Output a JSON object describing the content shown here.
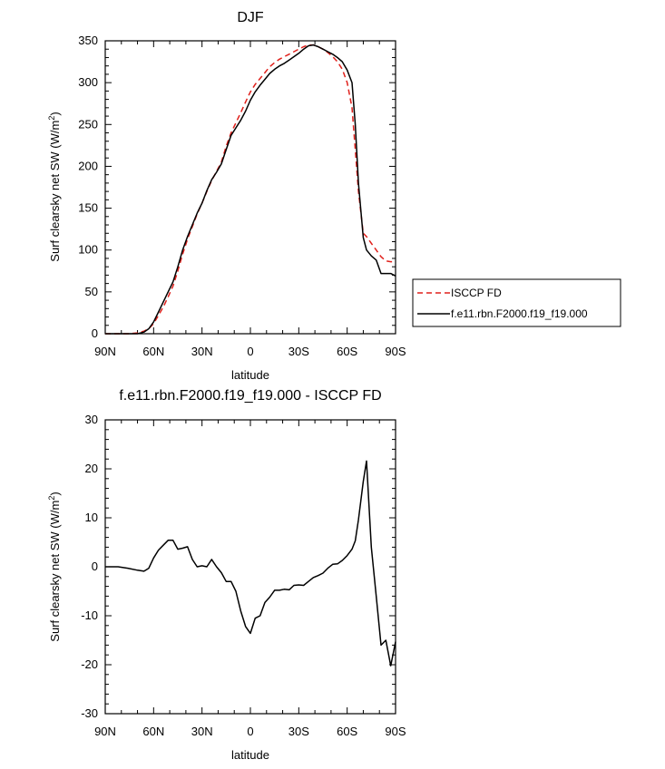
{
  "colors": {
    "background": "#ffffff",
    "isccp": "#e0201b",
    "model": "#000000"
  },
  "legend": {
    "items": [
      {
        "name": "ISCCP FD",
        "color": "#e0201b",
        "dash": "dashed"
      },
      {
        "name": "f.e11.rbn.F2000.f19_f19.000",
        "color": "#000000",
        "dash": "solid"
      }
    ]
  },
  "chart_data": [
    {
      "type": "line",
      "title": "DJF",
      "xlabel": "latitude",
      "ylabel_main": "Surf clearsky net SW (W/m",
      "ylabel_sup": "2",
      "ylabel_close": ")",
      "xlim": [
        -90,
        90
      ],
      "ylim": [
        0,
        350
      ],
      "xticks": [
        -90,
        -60,
        -30,
        0,
        30,
        60,
        90
      ],
      "xtick_labels": [
        "90N",
        "60N",
        "30N",
        "0",
        "30S",
        "60S",
        "90S"
      ],
      "yticks": [
        0,
        50,
        100,
        150,
        200,
        250,
        300,
        350
      ],
      "ytick_labels": [
        "0",
        "50",
        "100",
        "150",
        "200",
        "250",
        "300",
        "350"
      ],
      "series": [
        {
          "name": "ISCCP FD",
          "color": "#e0201b",
          "dash": "dashed",
          "x": [
            -90,
            -80,
            -75,
            -70,
            -66,
            -63,
            -60,
            -57,
            -54,
            -51,
            -48,
            -45,
            -42,
            -39,
            -36,
            -33,
            -30,
            -27,
            -24,
            -21,
            -18,
            -15,
            -12,
            -9,
            -6,
            -3,
            0,
            3,
            6,
            9,
            12,
            15,
            18,
            21,
            24,
            27,
            30,
            33,
            36,
            39,
            42,
            45,
            48,
            51,
            54,
            57,
            60,
            63,
            65,
            67,
            70,
            72,
            75,
            78,
            81,
            84,
            87,
            90
          ],
          "y": [
            0,
            0,
            0,
            1,
            3,
            6,
            12,
            22,
            32,
            44,
            57,
            75,
            95,
            113,
            128,
            143,
            156,
            170,
            183,
            194,
            205,
            224,
            240,
            252,
            264,
            277,
            289,
            298,
            305,
            312,
            319,
            324,
            328,
            331,
            334,
            337,
            340,
            343,
            345,
            345,
            343,
            340,
            336,
            331,
            325,
            316,
            300,
            270,
            220,
            170,
            120,
            116,
            108,
            100,
            92,
            87,
            86,
            86
          ]
        },
        {
          "name": "f.e11.rbn.F2000.f19_f19.000",
          "color": "#000000",
          "dash": "solid",
          "x": [
            -90,
            -80,
            -75,
            -70,
            -66,
            -63,
            -60,
            -57,
            -54,
            -51,
            -48,
            -45,
            -42,
            -39,
            -36,
            -33,
            -30,
            -27,
            -24,
            -21,
            -18,
            -15,
            -12,
            -9,
            -6,
            -3,
            0,
            3,
            6,
            9,
            12,
            15,
            18,
            21,
            24,
            27,
            30,
            33,
            36,
            39,
            42,
            45,
            48,
            51,
            54,
            57,
            60,
            63,
            65,
            67,
            70,
            72,
            75,
            78,
            81,
            84,
            87,
            90
          ],
          "y": [
            0,
            0,
            0,
            0,
            2,
            6,
            14,
            26,
            38,
            50,
            62,
            80,
            100,
            116,
            130,
            144,
            156,
            171,
            184,
            193,
            203,
            220,
            237,
            246,
            255,
            266,
            279,
            289,
            297,
            304,
            311,
            316,
            320,
            323,
            327,
            331,
            335,
            340,
            344,
            345,
            343,
            340,
            337,
            334,
            330,
            325,
            315,
            300,
            250,
            180,
            115,
            100,
            93,
            88,
            72,
            72,
            72,
            69
          ]
        }
      ]
    },
    {
      "type": "line",
      "title": "f.e11.rbn.F2000.f19_f19.000 - ISCCP FD",
      "xlabel": "latitude",
      "ylabel_main": "Surf clearsky net SW (W/m",
      "ylabel_sup": "2",
      "ylabel_close": ")",
      "xlim": [
        -90,
        90
      ],
      "ylim": [
        -30,
        30
      ],
      "xticks": [
        -90,
        -60,
        -30,
        0,
        30,
        60,
        90
      ],
      "xtick_labels": [
        "90N",
        "60N",
        "30N",
        "0",
        "30S",
        "60S",
        "90S"
      ],
      "yticks": [
        -30,
        -20,
        -10,
        0,
        10,
        20,
        30
      ],
      "ytick_labels": [
        "-30",
        "-20",
        "-10",
        "0",
        "10",
        "20",
        "30"
      ],
      "series": [
        {
          "name": "f.e11.rbn.F2000.f19_f19.000 - ISCCP FD",
          "color": "#000000",
          "dash": "solid",
          "x": [
            -90,
            -82,
            -76,
            -70,
            -66,
            -63,
            -60,
            -57,
            -54,
            -51,
            -48,
            -45,
            -42,
            -39,
            -36,
            -33,
            -30,
            -27,
            -24,
            -21,
            -18,
            -15,
            -12,
            -9,
            -6,
            -3,
            0,
            3,
            6,
            9,
            12,
            15,
            18,
            21,
            24,
            27,
            30,
            33,
            36,
            39,
            42,
            45,
            48,
            51,
            54,
            57,
            60,
            63,
            65,
            67,
            70,
            72,
            75,
            78,
            81,
            84,
            87,
            90
          ],
          "y": [
            0,
            0,
            -0.3,
            -0.7,
            -0.9,
            -0.3,
            1.8,
            3.4,
            4.4,
            5.4,
            5.4,
            3.6,
            3.8,
            4.1,
            1.5,
            0,
            0.2,
            0,
            1.5,
            0,
            -1.2,
            -3,
            -3,
            -5,
            -9,
            -12.2,
            -13.6,
            -10.5,
            -10,
            -7.3,
            -6.2,
            -4.8,
            -4.8,
            -4.6,
            -4.7,
            -3.8,
            -3.7,
            -3.8,
            -3,
            -2.2,
            -1.8,
            -1.3,
            -0.3,
            0.5,
            0.6,
            1.3,
            2.3,
            3.6,
            5.3,
            9.6,
            17.4,
            21.6,
            4,
            -6,
            -16,
            -15,
            -20.2,
            -15.3
          ]
        }
      ]
    }
  ]
}
